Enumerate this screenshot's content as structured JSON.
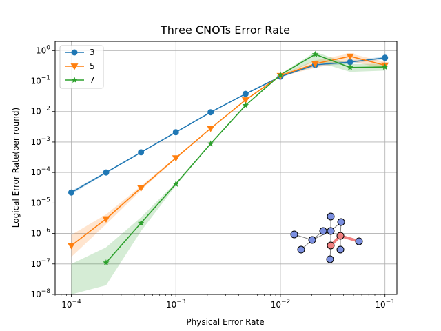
{
  "chart_data": {
    "type": "line",
    "title": "Three CNOTs Error Rate",
    "xlabel": "Physical Error Rate",
    "ylabel": "Logical Error Rate(per round)",
    "xscale": "log",
    "yscale": "log",
    "xlim": [
      7e-05,
      0.13
    ],
    "ylim": [
      1e-08,
      2
    ],
    "x_ticks": [
      {
        "value": 0.0001,
        "base": "10",
        "exp": "−4"
      },
      {
        "value": 0.001,
        "base": "10",
        "exp": "−3"
      },
      {
        "value": 0.01,
        "base": "10",
        "exp": "−2"
      },
      {
        "value": 0.1,
        "base": "10",
        "exp": "−1"
      }
    ],
    "y_ticks": [
      {
        "value": 1e-08,
        "base": "10",
        "exp": "−8"
      },
      {
        "value": 1e-07,
        "base": "10",
        "exp": "−7"
      },
      {
        "value": 1e-06,
        "base": "10",
        "exp": "−6"
      },
      {
        "value": 1e-05,
        "base": "10",
        "exp": "−5"
      },
      {
        "value": 0.0001,
        "base": "10",
        "exp": "−4"
      },
      {
        "value": 0.001,
        "base": "10",
        "exp": "−3"
      },
      {
        "value": 0.01,
        "base": "10",
        "exp": "−2"
      },
      {
        "value": 0.1,
        "base": "10",
        "exp": "−1"
      },
      {
        "value": 1,
        "base": "10",
        "exp": "0"
      }
    ],
    "grid": true,
    "legend_position": "top-left",
    "series": [
      {
        "name": "3",
        "color": "#1f77b4",
        "marker": "circle",
        "x": [
          0.0001,
          0.000215,
          0.000464,
          0.001,
          0.00215,
          0.00464,
          0.01,
          0.0215,
          0.0464,
          0.1
        ],
        "y": [
          2.2e-05,
          0.0001,
          0.00046,
          0.0021,
          0.0095,
          0.038,
          0.14,
          0.34,
          0.42,
          0.58
        ],
        "lower": [
          1.9e-05,
          9.3e-05,
          0.00044,
          0.00205,
          0.0093,
          0.037,
          0.135,
          0.3,
          0.37,
          0.52
        ],
        "upper": [
          2.5e-05,
          0.000107,
          0.00048,
          0.00215,
          0.0097,
          0.039,
          0.145,
          0.38,
          0.47,
          0.64
        ]
      },
      {
        "name": "5",
        "color": "#ff7f0e",
        "marker": "triangle-down",
        "x": [
          0.0001,
          0.000215,
          0.000464,
          0.001,
          0.00215,
          0.00464,
          0.01,
          0.0215,
          0.0464,
          0.1
        ],
        "y": [
          4e-07,
          3e-06,
          3.1e-05,
          0.0003,
          0.0028,
          0.024,
          0.15,
          0.37,
          0.65,
          0.33
        ],
        "lower": [
          1.7e-07,
          2e-06,
          2.6e-05,
          0.00028,
          0.0027,
          0.023,
          0.14,
          0.27,
          0.45,
          0.25
        ],
        "upper": [
          9e-07,
          4.2e-06,
          3.6e-05,
          0.00032,
          0.0029,
          0.025,
          0.16,
          0.48,
          0.8,
          0.43
        ]
      },
      {
        "name": "7",
        "color": "#2ca02c",
        "marker": "star",
        "x": [
          0.0001,
          0.000215,
          0.000464,
          0.001,
          0.00215,
          0.00464,
          0.01,
          0.0215,
          0.0464,
          0.1
        ],
        "y": [
          null,
          1.1e-07,
          2.2e-06,
          4.2e-05,
          0.00088,
          0.016,
          0.16,
          0.75,
          0.28,
          0.29
        ],
        "lower": [
          1e-08,
          2e-08,
          1.2e-06,
          3.7e-05,
          0.00085,
          0.0155,
          0.15,
          0.45,
          0.2,
          0.22
        ],
        "upper": [
          1e-07,
          3.5e-07,
          3.4e-06,
          4.7e-05,
          0.00091,
          0.0165,
          0.17,
          0.9,
          0.36,
          0.37
        ]
      }
    ]
  },
  "inset": {
    "description_icon": "qubit-graph-icon",
    "nodes": [
      {
        "id": 0,
        "role": "data",
        "color": "#7b8fe0"
      },
      {
        "id": 1,
        "role": "data",
        "color": "#7b8fe0"
      },
      {
        "id": 2,
        "role": "data",
        "color": "#7b8fe0"
      },
      {
        "id": 3,
        "role": "data",
        "color": "#7b8fe0"
      },
      {
        "id": 4,
        "role": "data",
        "color": "#7b8fe0"
      },
      {
        "id": 5,
        "role": "data",
        "color": "#7b8fe0"
      },
      {
        "id": 6,
        "role": "data",
        "color": "#7b8fe0"
      },
      {
        "id": 7,
        "role": "data",
        "color": "#7b8fe0"
      },
      {
        "id": 8,
        "role": "data",
        "color": "#7b8fe0"
      },
      {
        "id": 9,
        "role": "data",
        "color": "#7b8fe0"
      },
      {
        "id": 10,
        "role": "highlight",
        "color": "#f08080"
      },
      {
        "id": 11,
        "role": "highlight",
        "color": "#f08080"
      }
    ],
    "edge_color": "#808080",
    "highlight_edge_color": "#f08080"
  }
}
